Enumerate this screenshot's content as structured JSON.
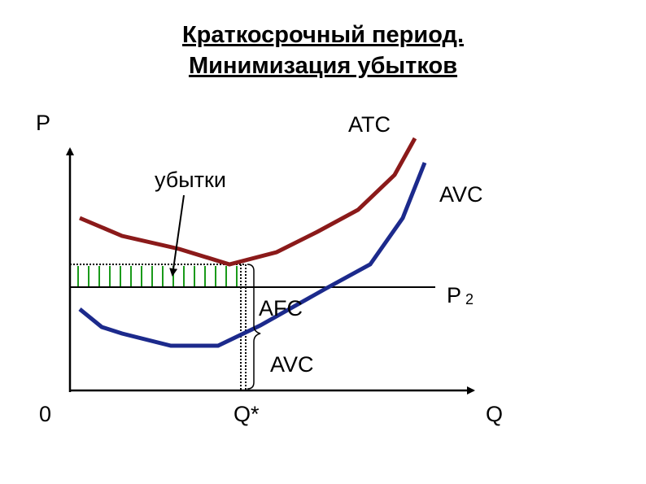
{
  "header": {
    "title_line1": "Краткосрочный период.",
    "title_line2": "Минимизация убытков"
  },
  "axes": {
    "y_label": "P",
    "x_label": "Q",
    "origin": "0",
    "q_star": "Q*"
  },
  "curves": {
    "atc": "ATC",
    "avc": "AVC"
  },
  "annotations": {
    "losses": "убытки",
    "afc": "AFC",
    "avc_segment": "AVC",
    "price_main": "P",
    "price_sub": "2"
  }
}
